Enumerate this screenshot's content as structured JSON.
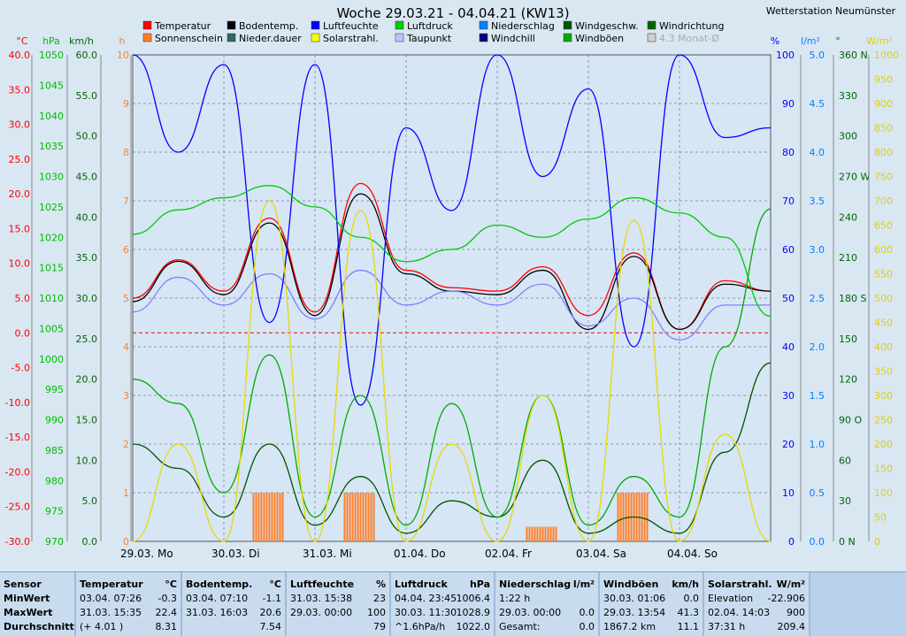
{
  "title": "Woche 29.03.21 - 04.04.21 (KW13)",
  "station": "Wetterstation Neumünster",
  "legend": [
    {
      "label": "Temperatur",
      "color": "#ff0000"
    },
    {
      "label": "Bodentemp.",
      "color": "#000000"
    },
    {
      "label": "Luftfeuchte",
      "color": "#0000ff"
    },
    {
      "label": "Luftdruck",
      "color": "#00cc00"
    },
    {
      "label": "Niederschlag",
      "color": "#0080ff"
    },
    {
      "label": "Windgeschw.",
      "color": "#005500"
    },
    {
      "label": "Windrichtung",
      "color": "#006600"
    },
    {
      "label": "Sonnenschein",
      "color": "#ff7f27"
    },
    {
      "label": "Nieder.dauer",
      "color": "#336666"
    },
    {
      "label": "Solarstrahl.",
      "color": "#ffff00"
    },
    {
      "label": "Taupunkt",
      "color": "#c0c0ff"
    },
    {
      "label": "Windchill",
      "color": "#000080"
    },
    {
      "label": "Windböen",
      "color": "#00aa00"
    },
    {
      "label": "4.3 Monat-Ø",
      "color": "#d0d0d0"
    }
  ],
  "axes": {
    "temp": {
      "unit": "°C",
      "ticks": [
        "40.0",
        "35.0",
        "30.0",
        "25.0",
        "20.0",
        "15.0",
        "10.0",
        "5.0",
        "0.0",
        "-5.0",
        "-10.0",
        "-15.0",
        "-20.0",
        "-25.0",
        "-30.0"
      ],
      "color": "#ff0000"
    },
    "pressure": {
      "unit": "hPa",
      "ticks": [
        "1050",
        "1045",
        "1040",
        "1035",
        "1030",
        "1025",
        "1020",
        "1015",
        "1010",
        "1005",
        "1000",
        "995",
        "990",
        "985",
        "980",
        "975",
        "970"
      ],
      "color": "#00bb00"
    },
    "wind": {
      "unit": "km/h",
      "ticks": [
        "60.0",
        "55.0",
        "50.0",
        "45.0",
        "40.0",
        "35.0",
        "30.0",
        "25.0",
        "20.0",
        "15.0",
        "10.0",
        "5.0",
        "0.0"
      ],
      "color": "#006600"
    },
    "sun": {
      "unit": "h",
      "ticks": [
        "10",
        "9",
        "8",
        "7",
        "6",
        "5",
        "4",
        "3",
        "2",
        "1",
        "0"
      ],
      "color": "#ff7f27"
    },
    "humidity": {
      "unit": "%",
      "ticks": [
        "100",
        "90",
        "80",
        "70",
        "60",
        "50",
        "40",
        "30",
        "20",
        "10",
        "0"
      ],
      "color": "#0000ff"
    },
    "rain": {
      "unit": "l/m²",
      "ticks": [
        "5.0",
        "4.5",
        "4.0",
        "3.5",
        "3.0",
        "2.5",
        "2.0",
        "1.5",
        "1.0",
        "0.5",
        "0.0"
      ],
      "color": "#0080ff"
    },
    "direction": {
      "unit": "°",
      "ticks": [
        "360 N",
        "330",
        "300",
        "270 W",
        "240",
        "210",
        "180 S",
        "150",
        "120",
        "90 O",
        "60",
        "30",
        "0 N"
      ],
      "color": "#006600"
    },
    "solar": {
      "unit": "W/m²",
      "ticks": [
        "1000",
        "950",
        "900",
        "850",
        "800",
        "750",
        "700",
        "650",
        "600",
        "550",
        "500",
        "450",
        "400",
        "350",
        "300",
        "250",
        "200",
        "150",
        "100",
        "50",
        "0"
      ],
      "color": "#e0d000"
    }
  },
  "days": [
    "29.03.  Mo",
    "30.03.  Di",
    "31.03.  Mi",
    "01.04.  Do",
    "02.04.  Fr",
    "03.04.  Sa",
    "04.04.  So"
  ],
  "chart_data": {
    "type": "line",
    "title": "Woche 29.03.21 - 04.04.21 (KW13)",
    "x": [
      "29.03. 00h",
      "29.03. 12h",
      "30.03. 00h",
      "30.03. 12h",
      "31.03. 00h",
      "31.03. 12h",
      "01.04. 00h",
      "01.04. 12h",
      "02.04. 00h",
      "02.04. 12h",
      "03.04. 00h",
      "03.04. 12h",
      "04.04. 00h",
      "04.04. 12h",
      "05.04. 00h"
    ],
    "series": [
      {
        "name": "Temperatur",
        "unit": "°C",
        "axis": "temp",
        "color": "#ff0000",
        "values": [
          5.0,
          10.5,
          6.0,
          16.5,
          3.0,
          21.5,
          9.0,
          6.5,
          6.0,
          9.5,
          2.5,
          11.5,
          0.5,
          7.5,
          6.0
        ]
      },
      {
        "name": "Bodentemp.",
        "unit": "°C",
        "axis": "temp",
        "color": "#000000",
        "values": [
          4.5,
          10.3,
          5.5,
          15.8,
          2.5,
          20.0,
          8.5,
          6.0,
          5.5,
          9.0,
          0.5,
          11.0,
          0.5,
          7.0,
          6.0
        ]
      },
      {
        "name": "Taupunkt",
        "unit": "°C",
        "axis": "temp",
        "color": "#8080ff",
        "values": [
          3.0,
          8.0,
          4.0,
          8.5,
          2.0,
          9.0,
          4.0,
          6.0,
          4.0,
          7.0,
          1.0,
          5.0,
          -1.0,
          4.0,
          4.0
        ]
      },
      {
        "name": "Luftfeuchte",
        "unit": "%",
        "axis": "humidity",
        "color": "#0000ff",
        "values": [
          100,
          80,
          98,
          45,
          98,
          28,
          85,
          68,
          100,
          75,
          93,
          40,
          100,
          83,
          85
        ]
      },
      {
        "name": "Luftdruck",
        "unit": "hPa",
        "axis": "pressure",
        "color": "#00cc00",
        "values": [
          1020.5,
          1024.5,
          1026.5,
          1028.5,
          1025.0,
          1020.0,
          1016.0,
          1018.0,
          1022.0,
          1020.0,
          1023.0,
          1026.5,
          1024.0,
          1020.0,
          1007.0
        ]
      },
      {
        "name": "Windgeschw.",
        "unit": "km/h",
        "axis": "wind",
        "color": "#005500",
        "values": [
          12,
          9,
          3,
          12,
          2,
          8,
          1,
          5,
          3,
          10,
          1,
          3,
          1,
          11,
          22
        ]
      },
      {
        "name": "Windböen",
        "unit": "km/h",
        "axis": "wind",
        "color": "#00aa00",
        "values": [
          20,
          17,
          6,
          23,
          3,
          18,
          2,
          17,
          3,
          18,
          2,
          8,
          3,
          24,
          41
        ]
      },
      {
        "name": "Solarstrahl.",
        "unit": "W/m²",
        "axis": "solar",
        "color": "#e8d800",
        "values": [
          0,
          200,
          0,
          700,
          0,
          680,
          0,
          200,
          0,
          300,
          0,
          660,
          0,
          220,
          0
        ]
      },
      {
        "name": "Sonnenschein",
        "unit": "h",
        "axis": "sun",
        "color": "#ff7f27",
        "values": [
          0,
          0,
          0,
          1,
          0,
          1,
          0,
          0,
          0,
          0.3,
          0,
          1,
          0,
          0,
          0
        ]
      }
    ],
    "reference_line": {
      "label": "0 °C",
      "value": 0
    }
  },
  "summary": {
    "sensor": {
      "header": "Sensor",
      "rows": [
        "MinWert",
        "MaxWert",
        "Durchschnitt"
      ]
    },
    "temperature": {
      "header": "Temperatur",
      "unit": "°C",
      "rows": [
        [
          "03.04.  07:26",
          "-0.3"
        ],
        [
          "31.03.  15:35",
          "22.4"
        ],
        [
          "(+ 4.01 )",
          "8.31"
        ]
      ]
    },
    "soil": {
      "header": "Bodentemp.",
      "unit": "°C",
      "rows": [
        [
          "03.04.  07:10",
          "-1.1"
        ],
        [
          "31.03.  16:03",
          "20.6"
        ],
        [
          "",
          "7.54"
        ]
      ]
    },
    "humidity": {
      "header": "Luftfeuchte",
      "unit": "%",
      "rows": [
        [
          "31.03.  15:38",
          "23"
        ],
        [
          "29.03.  00:00",
          "100"
        ],
        [
          "",
          "79"
        ]
      ]
    },
    "pressure": {
      "header": "Luftdruck",
      "unit": "hPa",
      "rows": [
        [
          "04.04.  23:45",
          "1006.4"
        ],
        [
          "30.03.  11:30",
          "1028.9"
        ],
        [
          "^1.6hPa/h",
          "1022.0"
        ]
      ]
    },
    "rain": {
      "header": "Niederschlag",
      "unit": "l/m²",
      "rows": [
        [
          "1:22 h",
          ""
        ],
        [
          "29.03.  00:00",
          "0.0"
        ],
        [
          "Gesamt:",
          "0.0"
        ]
      ]
    },
    "gust": {
      "header": "Windböen",
      "unit": "km/h",
      "rows": [
        [
          "30.03.  01:06",
          "0.0"
        ],
        [
          "29.03.  13:54",
          "41.3"
        ],
        [
          "1867.2 km",
          "11.1"
        ]
      ]
    },
    "solar": {
      "header": "Solarstrahl.",
      "unit": "W/m²",
      "rows": [
        [
          "Elevation",
          "-22.906"
        ],
        [
          "02.04.  14:03",
          "900"
        ],
        [
          "37:31 h",
          "209.4"
        ]
      ]
    }
  }
}
